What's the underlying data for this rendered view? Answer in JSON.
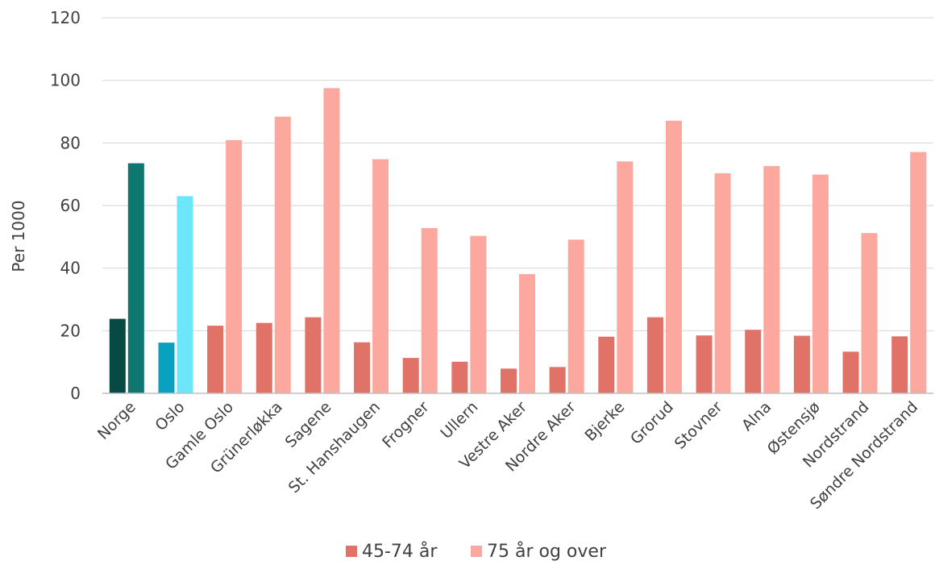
{
  "chart_data": {
    "type": "bar",
    "ylabel": "Per 1000",
    "xlabel": "",
    "ylim": [
      0,
      120
    ],
    "yticks": [
      0,
      20,
      40,
      60,
      80,
      100,
      120
    ],
    "grid": true,
    "legend_position": "bottom",
    "categories": [
      "Norge",
      "Oslo",
      "Gamle Oslo",
      "Grünerløkka",
      "Sagene",
      "St. Hanshaugen",
      "Frogner",
      "Ullern",
      "Vestre Aker",
      "Nordre Aker",
      "Bjerke",
      "Grorud",
      "Stovner",
      "Alna",
      "Østensjø",
      "Nordstrand",
      "Søndre Nordstrand"
    ],
    "series": [
      {
        "name": "45-74 år",
        "color": "#e07267",
        "values": [
          23.8,
          16.2,
          21.6,
          22.5,
          24.3,
          16.3,
          11.3,
          10.1,
          7.9,
          8.4,
          18.1,
          24.3,
          18.5,
          20.3,
          18.4,
          13.3,
          18.2
        ]
      },
      {
        "name": "75 år og over",
        "color": "#fca89f",
        "values": [
          73.5,
          63.0,
          80.9,
          88.4,
          97.5,
          74.8,
          52.8,
          50.3,
          38.1,
          49.1,
          74.1,
          87.1,
          70.3,
          72.6,
          69.9,
          51.2,
          77.1
        ]
      }
    ],
    "highlight_colors": {
      "Norge": [
        "#054b44",
        "#0e7770"
      ],
      "Oslo": [
        "#0aa0c0",
        "#6ce6f8"
      ]
    }
  }
}
